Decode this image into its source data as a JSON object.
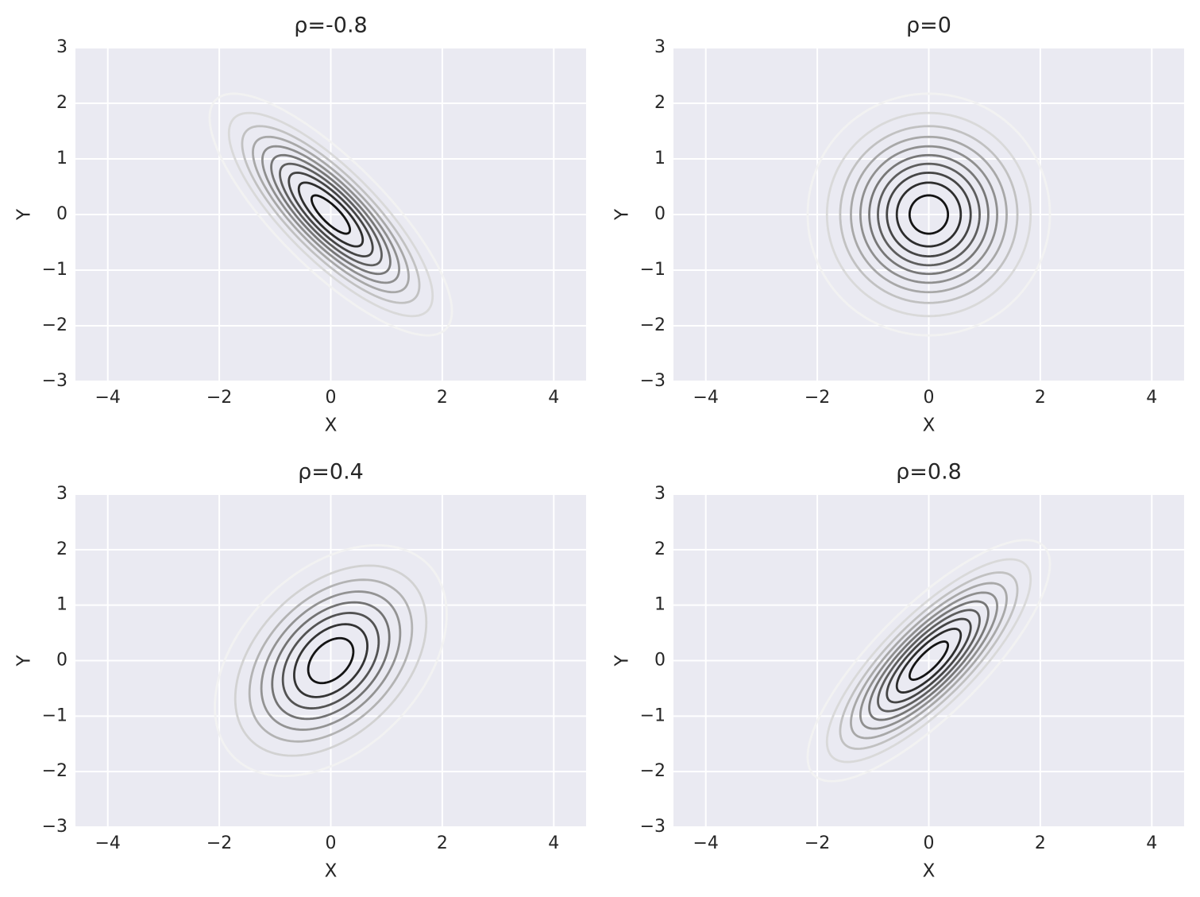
{
  "chart_data": [
    {
      "type": "contour",
      "title": "ρ=-0.8",
      "rho": -0.8,
      "levels": [
        0.025,
        0.05,
        0.075,
        0.1,
        0.125,
        0.15,
        0.175,
        0.2,
        0.225,
        0.25
      ],
      "colormap": "Greys",
      "x_label": "X",
      "y_label": "Y",
      "xlim": [
        -4.58,
        4.58
      ],
      "ylim": [
        -3,
        3
      ],
      "xticks": [
        {
          "value": -4,
          "label": "−4"
        },
        {
          "value": -2,
          "label": "−2"
        },
        0,
        2,
        4
      ],
      "yticks": [
        {
          "value": -3,
          "label": "−3"
        },
        {
          "value": -2,
          "label": "−2"
        },
        {
          "value": -1,
          "label": "−1"
        },
        0,
        1,
        2,
        3
      ],
      "grid": true
    },
    {
      "type": "contour",
      "title": "ρ=0",
      "rho": 0,
      "levels": [
        0.015,
        0.03,
        0.045,
        0.06,
        0.075,
        0.09,
        0.105,
        0.12,
        0.135,
        0.15
      ],
      "colormap": "Greys",
      "x_label": "X",
      "y_label": "Y",
      "xlim": [
        -4.58,
        4.58
      ],
      "ylim": [
        -3,
        3
      ],
      "xticks": [
        {
          "value": -4,
          "label": "−4"
        },
        {
          "value": -2,
          "label": "−2"
        },
        0,
        2,
        4
      ],
      "yticks": [
        {
          "value": -3,
          "label": "−3"
        },
        {
          "value": -2,
          "label": "−2"
        },
        {
          "value": -1,
          "label": "−1"
        },
        0,
        1,
        2,
        3
      ],
      "grid": true
    },
    {
      "type": "contour",
      "title": "ρ=0.4",
      "rho": 0.4,
      "levels": [
        0.02,
        0.04,
        0.06,
        0.08,
        0.1,
        0.12,
        0.14,
        0.16
      ],
      "colormap": "Greys",
      "x_label": "X",
      "y_label": "Y",
      "xlim": [
        -4.58,
        4.58
      ],
      "ylim": [
        -3,
        3
      ],
      "xticks": [
        {
          "value": -4,
          "label": "−4"
        },
        {
          "value": -2,
          "label": "−2"
        },
        0,
        2,
        4
      ],
      "yticks": [
        {
          "value": -3,
          "label": "−3"
        },
        {
          "value": -2,
          "label": "−2"
        },
        {
          "value": -1,
          "label": "−1"
        },
        0,
        1,
        2,
        3
      ],
      "grid": true
    },
    {
      "type": "contour",
      "title": "ρ=0.8",
      "rho": 0.8,
      "levels": [
        0.025,
        0.05,
        0.075,
        0.1,
        0.125,
        0.15,
        0.175,
        0.2,
        0.225,
        0.25
      ],
      "colormap": "Greys",
      "x_label": "X",
      "y_label": "Y",
      "xlim": [
        -4.58,
        4.58
      ],
      "ylim": [
        -3,
        3
      ],
      "xticks": [
        {
          "value": -4,
          "label": "−4"
        },
        {
          "value": -2,
          "label": "−2"
        },
        0,
        2,
        4
      ],
      "yticks": [
        {
          "value": -3,
          "label": "−3"
        },
        {
          "value": -2,
          "label": "−2"
        },
        {
          "value": -1,
          "label": "−1"
        },
        0,
        1,
        2,
        3
      ],
      "grid": true
    }
  ]
}
